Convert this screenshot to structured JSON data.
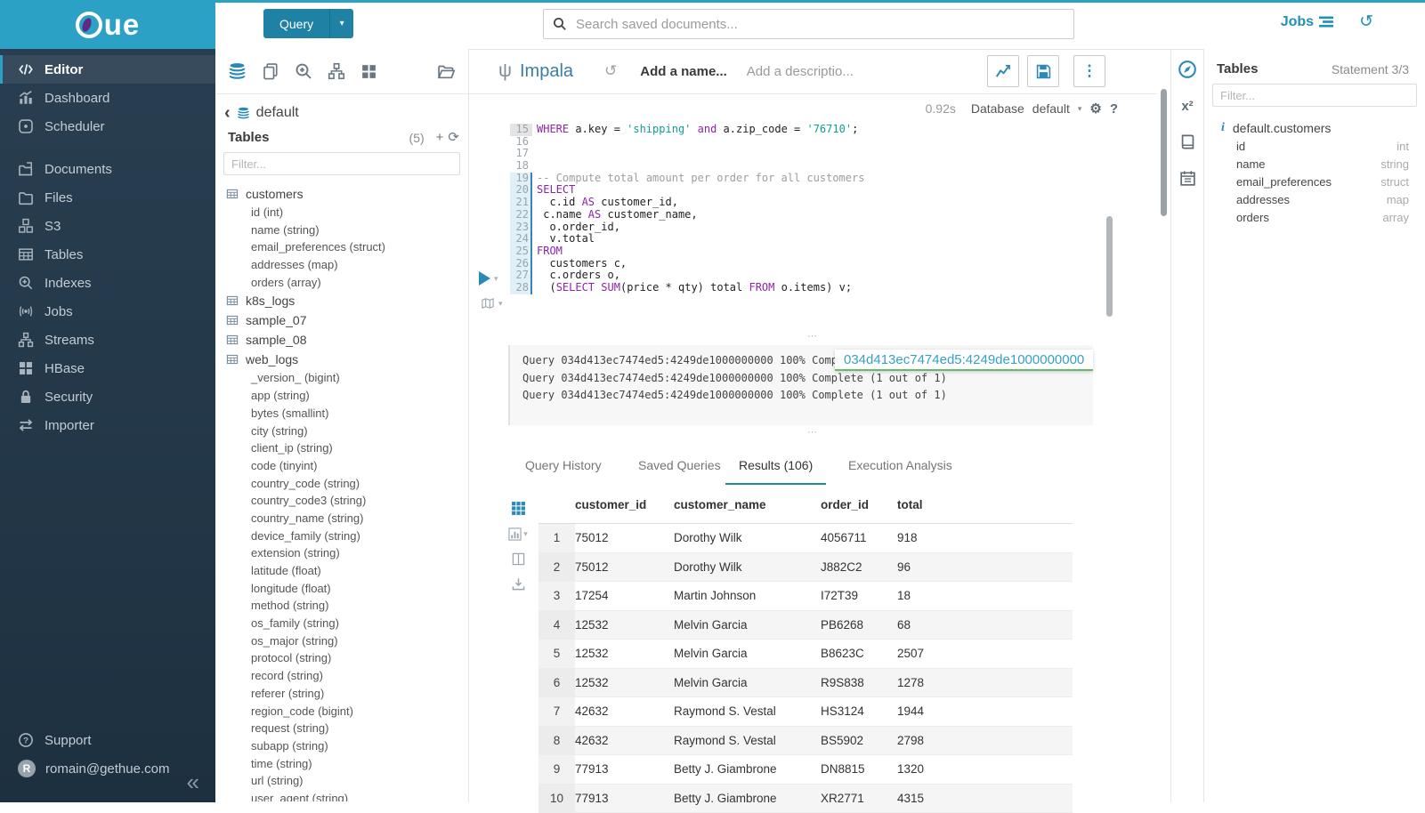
{
  "colors": {
    "brand_blue": "#2aa1c5",
    "primary_button": "#1f82a5",
    "link_blue": "#2a8ab5",
    "sidebar_bg": "#24394b",
    "sql_keyword": "#8e24aa",
    "sql_string": "#109e8e",
    "active_tab_underline": "#1b8a99",
    "tooltip_underline": "#66bb6a"
  },
  "icons": {
    "search": "magnifier-icon",
    "jobs": "list-bars-icon",
    "history": "circular-arrow-icon",
    "query_caret": "chevron-down-icon",
    "collapse": "double-chevron-left-icon",
    "left_assist_tabs": [
      "database-stack-icon",
      "copy-documents-icon",
      "zoom-in-icon",
      "sitemap-icon",
      "grid-icon",
      "folder-open-icon"
    ],
    "editor_buttons": [
      "line-chart-icon",
      "save-icon",
      "kebab-menu-icon"
    ],
    "results_strip": [
      "grid-icon",
      "bar-chart-icon",
      "columns-icon",
      "download-icon"
    ],
    "right_strip": [
      "compass-icon",
      "functions-icon",
      "book-icon",
      "calendar-icon"
    ]
  },
  "topbar": {
    "logo_text": "ue",
    "query_button_label": "Query",
    "search_placeholder": "Search saved documents...",
    "jobs_label": "Jobs"
  },
  "nav": {
    "items": [
      {
        "label": "Editor",
        "icon": "code-editor-icon",
        "ref": "#i-editor",
        "cls": "active"
      },
      {
        "label": "Dashboard",
        "icon": "dashboard-icon",
        "ref": "#i-dashboard",
        "cls": ""
      },
      {
        "label": "Scheduler",
        "icon": "scheduler-icon",
        "ref": "#i-scheduler",
        "cls": ""
      },
      {
        "label": "Documents",
        "icon": "documents-icon",
        "ref": "#i-documents",
        "cls": "gap"
      },
      {
        "label": "Files",
        "icon": "files-icon",
        "ref": "#i-files",
        "cls": ""
      },
      {
        "label": "S3",
        "icon": "s3-icon",
        "ref": "#i-s3",
        "cls": ""
      },
      {
        "label": "Tables",
        "icon": "tables-icon",
        "ref": "#i-tables",
        "cls": ""
      },
      {
        "label": "Indexes",
        "icon": "indexes-icon",
        "ref": "#i-indexes",
        "cls": ""
      },
      {
        "label": "Jobs",
        "icon": "jobs-icon",
        "ref": "#i-jobs",
        "cls": ""
      },
      {
        "label": "Streams",
        "icon": "streams-icon",
        "ref": "#i-streams",
        "cls": ""
      },
      {
        "label": "HBase",
        "icon": "hbase-icon",
        "ref": "#i-hbase",
        "cls": ""
      },
      {
        "label": "Security",
        "icon": "security-icon",
        "ref": "#i-security",
        "cls": ""
      },
      {
        "label": "Importer",
        "icon": "importer-icon",
        "ref": "#i-importer",
        "cls": ""
      }
    ],
    "support_label": "Support",
    "user_email": "romain@gethue.com",
    "user_initial": "R",
    "collapse_glyph": "«"
  },
  "left_assist": {
    "db_name": "default",
    "tables_label": "Tables",
    "tables_count": "(5)",
    "filter_placeholder": "Filter...",
    "tables": [
      {
        "name": "customers",
        "columns": [
          "id (int)",
          "name (string)",
          "email_preferences (struct)",
          "addresses (map)",
          "orders (array)"
        ]
      },
      {
        "name": "k8s_logs",
        "columns": []
      },
      {
        "name": "sample_07",
        "columns": []
      },
      {
        "name": "sample_08",
        "columns": []
      },
      {
        "name": "web_logs",
        "columns": [
          "_version_ (bigint)",
          "app (string)",
          "bytes (smallint)",
          "city (string)",
          "client_ip (string)",
          "code (tinyint)",
          "country_code (string)",
          "country_code3 (string)",
          "country_name (string)",
          "device_family (string)",
          "extension (string)",
          "latitude (float)",
          "longitude (float)",
          "method (string)",
          "os_family (string)",
          "os_major (string)",
          "protocol (string)",
          "record (string)",
          "referer (string)",
          "region_code (bigint)",
          "request (string)",
          "subapp (string)",
          "time (string)",
          "url (string)",
          "user_agent (string)"
        ]
      }
    ]
  },
  "editor": {
    "engine": "Impala",
    "name_placeholder": "Add a name...",
    "description_placeholder": "Add a descriptio...",
    "exec_time": "0.92s",
    "database_label": "Database",
    "database_value": "default",
    "code": {
      "lines": [
        {
          "n": "15",
          "text": "WHERE a.key = 'shipping' and a.zip_code = '76710';",
          "cls": "cur"
        },
        {
          "n": "16",
          "text": "",
          "cls": ""
        },
        {
          "n": "17",
          "text": "",
          "cls": ""
        },
        {
          "n": "18",
          "text": "",
          "cls": ""
        },
        {
          "n": "19",
          "text": "-- Compute total amount per order for all customers",
          "cls": "stmt"
        },
        {
          "n": "20",
          "text": "SELECT",
          "cls": "stmt"
        },
        {
          "n": "21",
          "text": "  c.id AS customer_id,",
          "cls": "stmt"
        },
        {
          "n": "22",
          "text": " c.name AS customer_name,",
          "cls": "stmt"
        },
        {
          "n": "23",
          "text": "  o.order_id,",
          "cls": "stmt"
        },
        {
          "n": "24",
          "text": "  v.total",
          "cls": "stmt"
        },
        {
          "n": "25",
          "text": "FROM",
          "cls": "stmt"
        },
        {
          "n": "26",
          "text": "  customers c,",
          "cls": "stmt"
        },
        {
          "n": "27",
          "text": "  c.orders o,",
          "cls": "stmt"
        },
        {
          "n": "28",
          "text": "  (SELECT SUM(price * qty) total FROM o.items) v;",
          "cls": "stmt"
        }
      ]
    },
    "logs": {
      "lines": [
        "Query 034d413ec7474ed5:4249de1000000000 100% Complete (1 out of 1)",
        "Query 034d413ec7474ed5:4249de1000000000 100% Complete (1 out of 1)",
        "Query 034d413ec7474ed5:4249de1000000000 100% Complete (1 out of 1)"
      ],
      "tooltip_text": "034d413ec7474ed5:4249de1000000000"
    },
    "tabs": [
      {
        "label": "Query History",
        "cls": ""
      },
      {
        "label": "Saved Queries",
        "cls": ""
      },
      {
        "label": "Results (106)",
        "cls": "active"
      },
      {
        "label": "Execution Analysis",
        "cls": ""
      }
    ],
    "results": {
      "headers": [
        "customer_id",
        "customer_name",
        "order_id",
        "total"
      ],
      "rows": [
        {
          "n": "1",
          "customer_id": "75012",
          "customer_name": "Dorothy Wilk",
          "order_id": "4056711",
          "total": "918"
        },
        {
          "n": "2",
          "customer_id": "75012",
          "customer_name": "Dorothy Wilk",
          "order_id": "J882C2",
          "total": "96"
        },
        {
          "n": "3",
          "customer_id": "17254",
          "customer_name": "Martin Johnson",
          "order_id": "I72T39",
          "total": "18"
        },
        {
          "n": "4",
          "customer_id": "12532",
          "customer_name": "Melvin Garcia",
          "order_id": "PB6268",
          "total": "68"
        },
        {
          "n": "5",
          "customer_id": "12532",
          "customer_name": "Melvin Garcia",
          "order_id": "B8623C",
          "total": "2507"
        },
        {
          "n": "6",
          "customer_id": "12532",
          "customer_name": "Melvin Garcia",
          "order_id": "R9S838",
          "total": "1278"
        },
        {
          "n": "7",
          "customer_id": "42632",
          "customer_name": "Raymond S. Vestal",
          "order_id": "HS3124",
          "total": "1944"
        },
        {
          "n": "8",
          "customer_id": "42632",
          "customer_name": "Raymond S. Vestal",
          "order_id": "BS5902",
          "total": "2798"
        },
        {
          "n": "9",
          "customer_id": "77913",
          "customer_name": "Betty J. Giambrone",
          "order_id": "DN8815",
          "total": "1320"
        },
        {
          "n": "10",
          "customer_id": "77913",
          "customer_name": "Betty J. Giambrone",
          "order_id": "XR2771",
          "total": "4315"
        }
      ]
    }
  },
  "right_assist": {
    "title": "Tables",
    "statement": "Statement 3/3",
    "filter_placeholder": "Filter...",
    "table_name": "default.customers",
    "columns": [
      {
        "name": "id",
        "type": "int"
      },
      {
        "name": "name",
        "type": "string"
      },
      {
        "name": "email_preferences",
        "type": "struct"
      },
      {
        "name": "addresses",
        "type": "map"
      },
      {
        "name": "orders",
        "type": "array"
      }
    ]
  }
}
